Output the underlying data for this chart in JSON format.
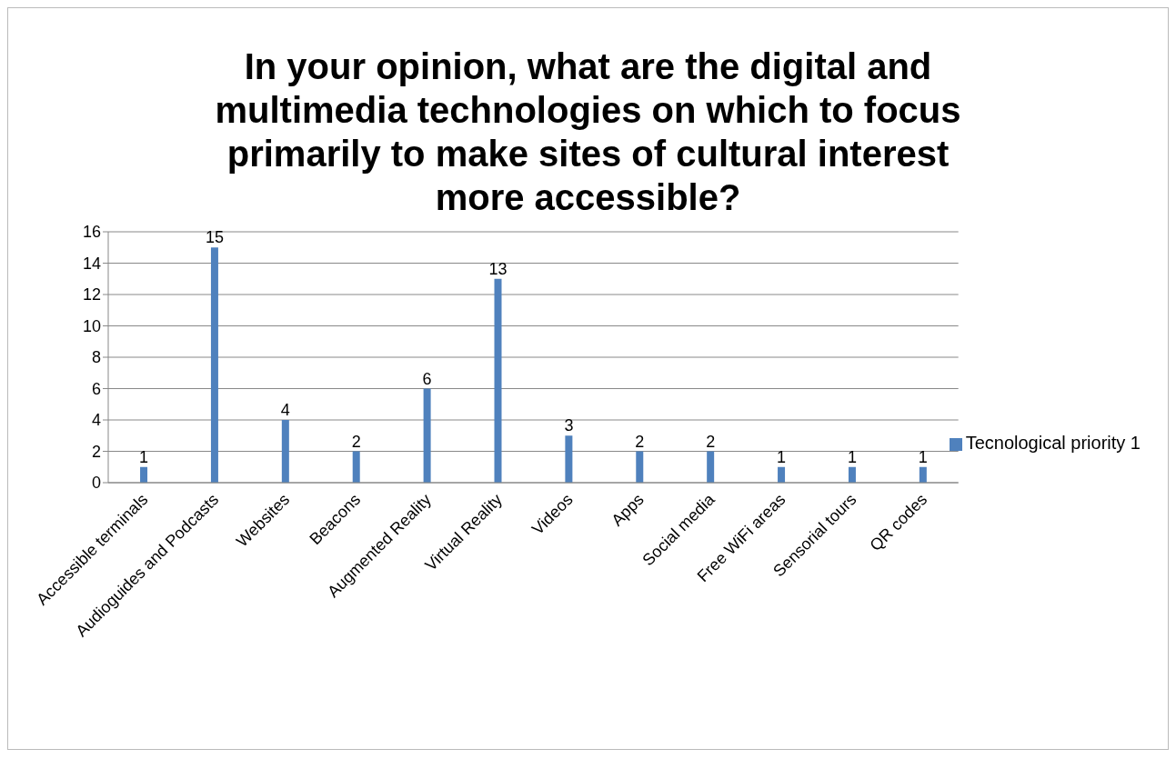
{
  "chart_data": {
    "type": "bar",
    "title": "In your opinion, what are the digital and multimedia technologies on which to focus primarily to make sites of cultural interest more accessible?",
    "categories": [
      "Accessible terminals",
      "Audioguides and Podcasts",
      "Websites",
      "Beacons",
      "Augmented Reality",
      "Virtual Reality",
      "Videos",
      "Apps",
      "Social media",
      "Free WiFi areas",
      "Sensorial tours",
      "QR codes"
    ],
    "series": [
      {
        "name": "Tecnological priority 1",
        "color": "#4f81bd",
        "values": [
          1,
          15,
          4,
          2,
          6,
          13,
          3,
          2,
          2,
          1,
          1,
          1
        ]
      }
    ],
    "ylim": [
      0,
      16
    ],
    "yticks": [
      0,
      2,
      4,
      6,
      8,
      10,
      12,
      14,
      16
    ],
    "grid": "y",
    "legend": "right",
    "data_labels": true
  }
}
